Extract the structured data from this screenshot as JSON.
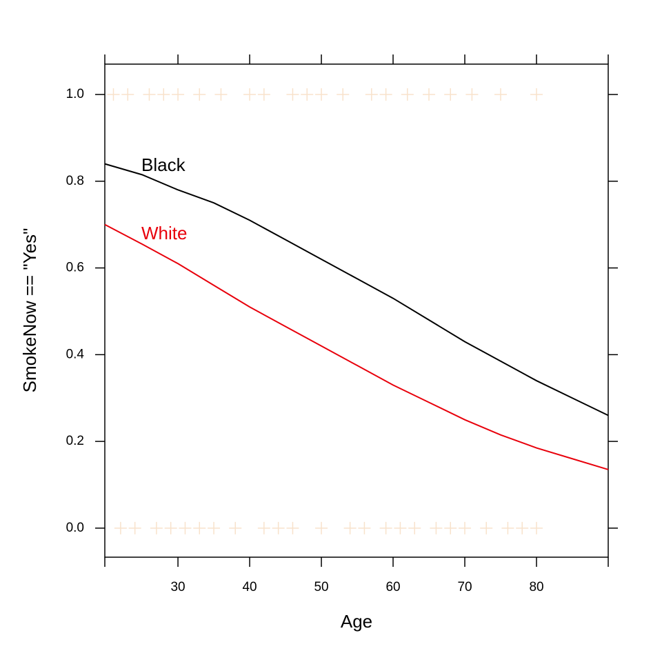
{
  "chart_data": {
    "type": "line",
    "x_label": "Age",
    "y_label": "SmokeNow == \"Yes\"",
    "x": [
      19.8,
      25,
      30,
      35,
      40,
      45,
      50,
      55,
      60,
      65,
      70,
      75,
      80,
      85,
      90
    ],
    "series": [
      {
        "name": "Black",
        "color": "#000000",
        "values": [
          0.84,
          0.815,
          0.78,
          0.75,
          0.71,
          0.665,
          0.62,
          0.575,
          0.53,
          0.48,
          0.43,
          0.385,
          0.34,
          0.3,
          0.26
        ]
      },
      {
        "name": "White",
        "color": "#e8000b",
        "values": [
          0.7,
          0.655,
          0.61,
          0.56,
          0.51,
          0.465,
          0.42,
          0.375,
          0.33,
          0.29,
          0.25,
          0.215,
          0.185,
          0.16,
          0.135
        ]
      }
    ],
    "points": {
      "color": "#e07a10",
      "x": [
        21,
        23,
        26,
        28,
        30,
        33,
        36,
        40,
        42,
        46,
        48,
        50,
        53,
        57,
        59,
        62,
        65,
        68,
        71,
        75,
        80,
        22,
        24,
        27,
        29,
        31,
        33,
        35,
        38,
        42,
        44,
        46,
        50,
        54,
        56,
        59,
        61,
        63,
        66,
        68,
        70,
        73,
        76,
        78,
        80
      ],
      "y": [
        1,
        1,
        1,
        1,
        1,
        1,
        1,
        1,
        1,
        1,
        1,
        1,
        1,
        1,
        1,
        1,
        1,
        1,
        1,
        1,
        1,
        0,
        0,
        0,
        0,
        0,
        0,
        0,
        0,
        0,
        0,
        0,
        0,
        0,
        0,
        0,
        0,
        0,
        0,
        0,
        0,
        0,
        0,
        0,
        0
      ]
    },
    "xlim": [
      19.8,
      90
    ],
    "ylim": [
      -0.067,
      1.07
    ],
    "xticks": [
      30,
      40,
      50,
      60,
      70,
      80
    ],
    "yticks": [
      {
        "value": 0,
        "label": "0.0"
      },
      {
        "value": 0.2,
        "label": "0.2"
      },
      {
        "value": 0.4,
        "label": "0.4"
      },
      {
        "value": 0.6,
        "label": "0.6"
      },
      {
        "value": 0.8,
        "label": "0.8"
      },
      {
        "value": 1,
        "label": "1.0"
      }
    ]
  }
}
